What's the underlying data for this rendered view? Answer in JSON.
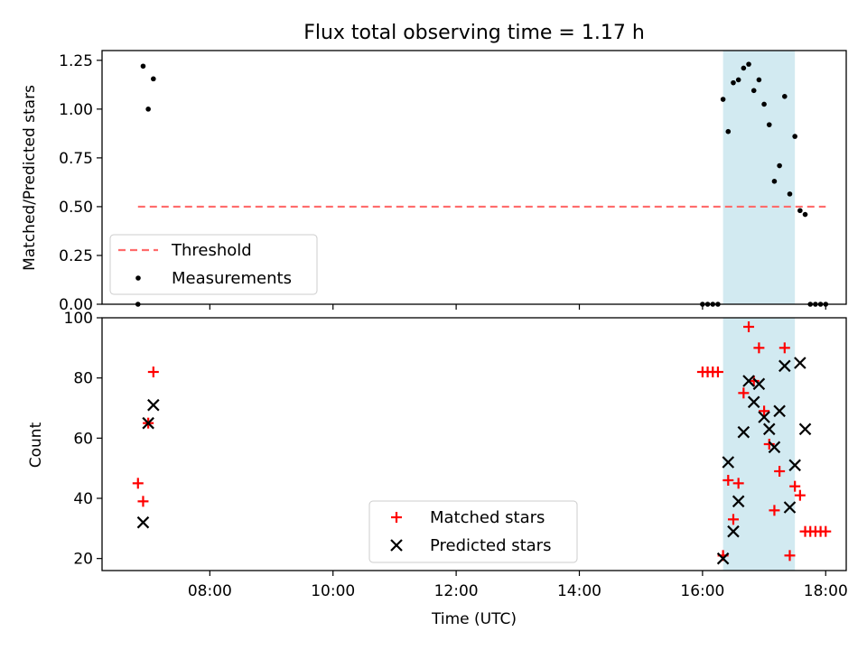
{
  "title": "Flux total observing time = 1.17 h",
  "colors": {
    "threshold": "#ff6b6b",
    "band": "#add8e6",
    "matched": "#ff0000",
    "predicted": "#000000",
    "measurement": "#000000"
  },
  "chart_data": [
    {
      "type": "scatter",
      "ylabel": "Matched/Predicted stars",
      "ylim": [
        0,
        1.3
      ],
      "yticks": [
        "0.00",
        "0.25",
        "0.50",
        "0.75",
        "1.00",
        "1.25"
      ],
      "xlim": [
        "06:15",
        "18:20"
      ],
      "shaded_x_range": [
        "16:20",
        "17:30"
      ],
      "legend_position": "lower-left",
      "threshold": {
        "name": "Threshold",
        "y": 0.5,
        "x_start": "06:50",
        "x_end": "18:00"
      },
      "series": [
        {
          "name": "Measurements",
          "points": [
            [
              "06:50",
              0.0
            ],
            [
              "06:55",
              1.22
            ],
            [
              "07:00",
              1.0
            ],
            [
              "07:05",
              1.155
            ],
            [
              "16:00",
              0.0
            ],
            [
              "16:05",
              0.0
            ],
            [
              "16:10",
              0.0
            ],
            [
              "16:15",
              0.0
            ],
            [
              "16:20",
              1.05
            ],
            [
              "16:25",
              0.885
            ],
            [
              "16:30",
              1.135
            ],
            [
              "16:35",
              1.15
            ],
            [
              "16:40",
              1.21
            ],
            [
              "16:45",
              1.23
            ],
            [
              "16:50",
              1.095
            ],
            [
              "16:55",
              1.15
            ],
            [
              "17:00",
              1.025
            ],
            [
              "17:05",
              0.92
            ],
            [
              "17:10",
              0.63
            ],
            [
              "17:15",
              0.71
            ],
            [
              "17:20",
              1.065
            ],
            [
              "17:25",
              0.565
            ],
            [
              "17:30",
              0.86
            ],
            [
              "17:35",
              0.48
            ],
            [
              "17:40",
              0.46
            ],
            [
              "17:45",
              0.0
            ],
            [
              "17:50",
              0.0
            ],
            [
              "17:55",
              0.0
            ],
            [
              "18:00",
              0.0
            ]
          ]
        }
      ]
    },
    {
      "type": "scatter",
      "xlabel": "Time (UTC)",
      "ylabel": "Count",
      "ylim": [
        16,
        100
      ],
      "yticks": [
        "20",
        "40",
        "60",
        "80",
        "100"
      ],
      "xlim": [
        "06:15",
        "18:20"
      ],
      "xticks": [
        "08:00",
        "10:00",
        "12:00",
        "14:00",
        "16:00",
        "18:00"
      ],
      "shaded_x_range": [
        "16:20",
        "17:30"
      ],
      "legend_position": "lower-center",
      "series": [
        {
          "name": "Matched stars",
          "marker": "plus",
          "points": [
            [
              "06:50",
              45
            ],
            [
              "06:55",
              39
            ],
            [
              "07:00",
              65
            ],
            [
              "07:05",
              82
            ],
            [
              "16:00",
              82
            ],
            [
              "16:05",
              82
            ],
            [
              "16:10",
              82
            ],
            [
              "16:15",
              82
            ],
            [
              "16:20",
              21
            ],
            [
              "16:25",
              46
            ],
            [
              "16:30",
              33
            ],
            [
              "16:35",
              45
            ],
            [
              "16:40",
              75
            ],
            [
              "16:45",
              97
            ],
            [
              "16:50",
              79
            ],
            [
              "16:55",
              90
            ],
            [
              "17:00",
              69
            ],
            [
              "17:05",
              58
            ],
            [
              "17:10",
              36
            ],
            [
              "17:15",
              49
            ],
            [
              "17:20",
              90
            ],
            [
              "17:25",
              21
            ],
            [
              "17:30",
              44
            ],
            [
              "17:35",
              41
            ],
            [
              "17:40",
              29
            ],
            [
              "17:45",
              29
            ],
            [
              "17:50",
              29
            ],
            [
              "17:55",
              29
            ],
            [
              "18:00",
              29
            ]
          ]
        },
        {
          "name": "Predicted stars",
          "marker": "x",
          "points": [
            [
              "06:55",
              32
            ],
            [
              "07:00",
              65
            ],
            [
              "07:05",
              71
            ],
            [
              "16:20",
              20
            ],
            [
              "16:25",
              52
            ],
            [
              "16:30",
              29
            ],
            [
              "16:35",
              39
            ],
            [
              "16:40",
              62
            ],
            [
              "16:45",
              79
            ],
            [
              "16:50",
              72
            ],
            [
              "16:55",
              78
            ],
            [
              "17:00",
              67
            ],
            [
              "17:05",
              63
            ],
            [
              "17:10",
              57
            ],
            [
              "17:15",
              69
            ],
            [
              "17:20",
              84
            ],
            [
              "17:25",
              37
            ],
            [
              "17:30",
              51
            ],
            [
              "17:35",
              85
            ],
            [
              "17:40",
              63
            ]
          ]
        }
      ]
    }
  ]
}
